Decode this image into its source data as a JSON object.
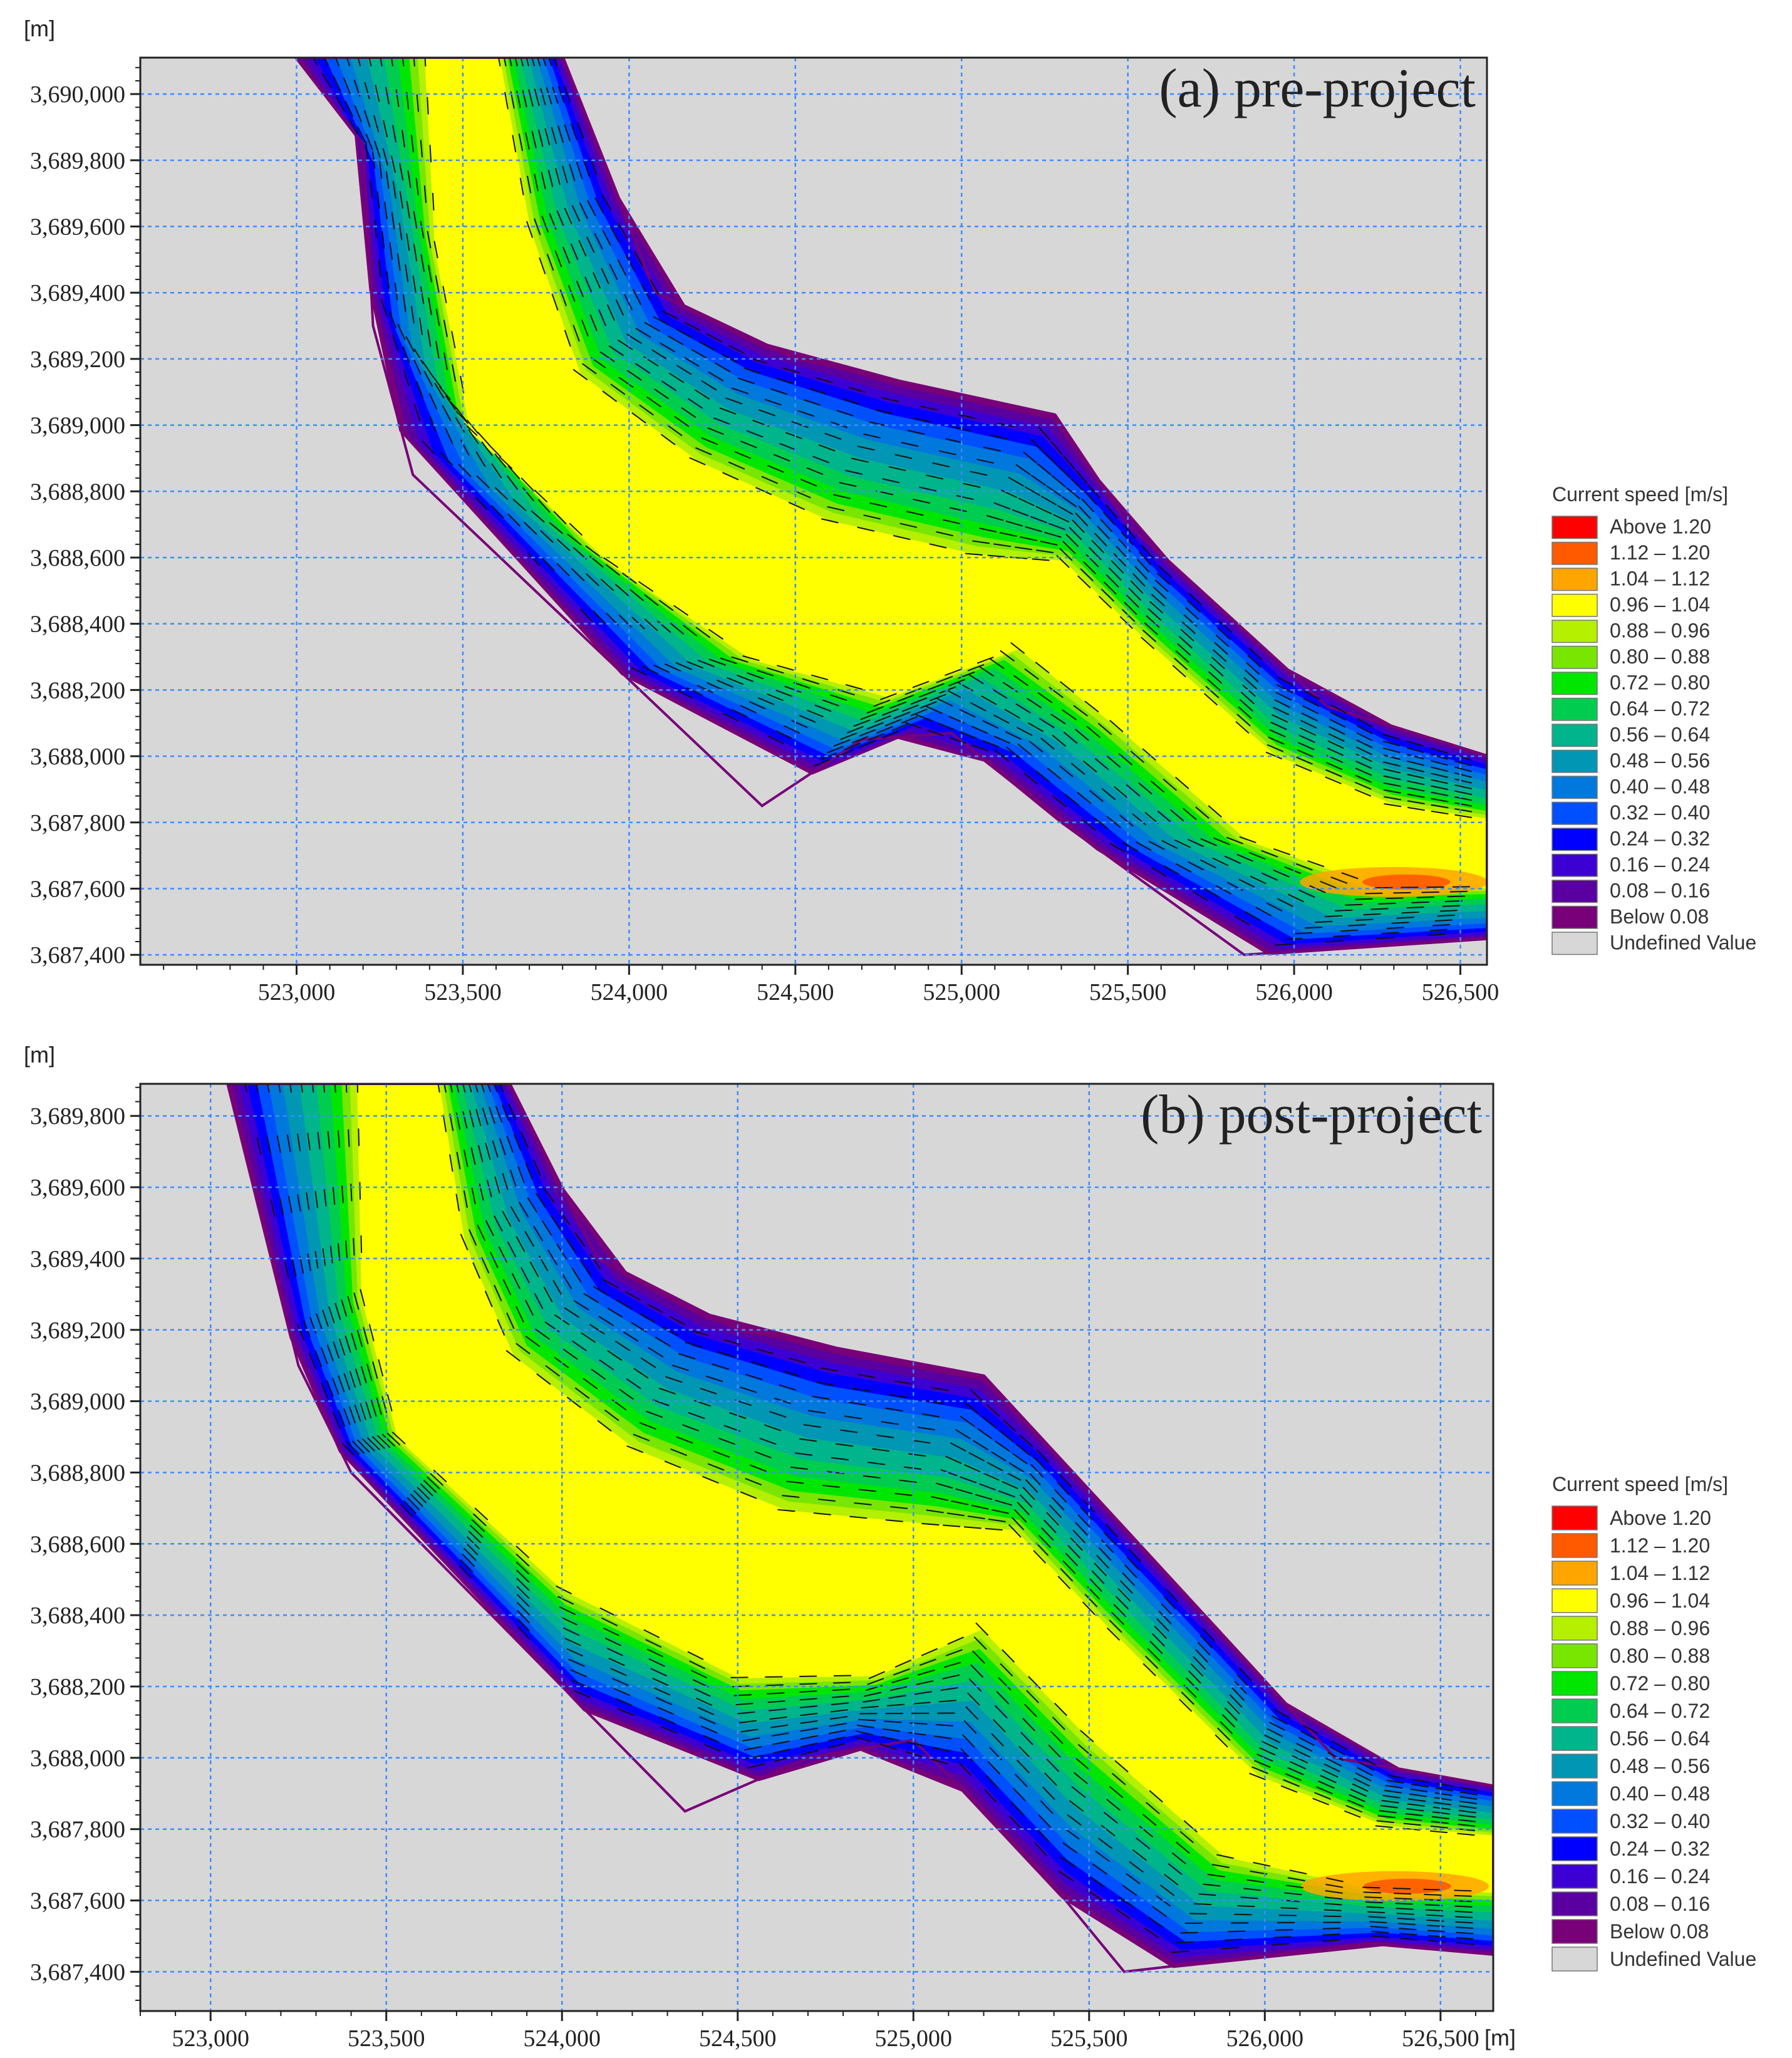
{
  "chart_data": [
    {
      "type": "heatmap",
      "title": "(a) pre-project",
      "y_unit_label": "[m]",
      "x_unit_label": "",
      "x_ticks": [
        523000,
        523500,
        524000,
        524500,
        525000,
        525500,
        526000,
        526500
      ],
      "x_tick_labels": [
        "523,000",
        "523,500",
        "524,000",
        "524,500",
        "525,000",
        "525,500",
        "526,000",
        "526,500"
      ],
      "y_ticks": [
        3690000,
        3689800,
        3689600,
        3689400,
        3689200,
        3689000,
        3688800,
        3688600,
        3688400,
        3688200,
        3688000,
        3687800,
        3687600,
        3687400
      ],
      "y_tick_labels": [
        "3,690,000",
        "3,689,800",
        "3,689,600",
        "3,689,400",
        "3,689,200",
        "3,689,000",
        "3,688,800",
        "3,688,600",
        "3,688,400",
        "3,688,200",
        "3,688,000",
        "3,687,800",
        "3,687,600",
        "3,687,400"
      ],
      "xlim": [
        522530,
        526580
      ],
      "ylim": [
        3687370,
        3690110
      ],
      "grid": true,
      "legend_position": "right",
      "channel_left_bank": [
        [
          523000,
          3690110
        ],
        [
          523200,
          3689850
        ],
        [
          523230,
          3689300
        ],
        [
          523350,
          3688850
        ],
        [
          524400,
          3687850
        ],
        [
          524700,
          3688050
        ],
        [
          524970,
          3688070
        ],
        [
          525300,
          3687800
        ],
        [
          525850,
          3687400
        ],
        [
          526580,
          3687450
        ]
      ],
      "channel_right_bank": [
        [
          523800,
          3690110
        ],
        [
          524080,
          3689400
        ],
        [
          524500,
          3689200
        ],
        [
          525280,
          3689030
        ],
        [
          525500,
          3688700
        ],
        [
          526100,
          3688150
        ],
        [
          526580,
          3688000
        ]
      ],
      "thalweg": [
        [
          523420,
          3690110
        ],
        [
          523440,
          3689500
        ],
        [
          523550,
          3688950
        ],
        [
          524000,
          3688550
        ],
        [
          524400,
          3688300
        ],
        [
          524800,
          3688200
        ],
        [
          525200,
          3688350
        ],
        [
          525500,
          3688100
        ],
        [
          525900,
          3687750
        ],
        [
          526300,
          3687620
        ],
        [
          526580,
          3687620
        ]
      ]
    },
    {
      "type": "heatmap",
      "title": "(b) post-project",
      "y_unit_label": "[m]",
      "x_unit_label": "[m]",
      "x_ticks": [
        523000,
        523500,
        524000,
        524500,
        525000,
        525500,
        526000,
        526500
      ],
      "x_tick_labels": [
        "523,000",
        "523,500",
        "524,000",
        "524,500",
        "525,000",
        "525,500",
        "526,000",
        "526,500"
      ],
      "y_ticks": [
        3689800,
        3689600,
        3689400,
        3689200,
        3689000,
        3688800,
        3688600,
        3688400,
        3688200,
        3688000,
        3687800,
        3687600,
        3687400
      ],
      "y_tick_labels": [
        "3,689,800",
        "3,689,600",
        "3,689,400",
        "3,689,200",
        "3,689,000",
        "3,688,800",
        "3,688,600",
        "3,688,400",
        "3,688,200",
        "3,688,000",
        "3,687,800",
        "3,687,600",
        "3,687,400"
      ],
      "xlim": [
        522800,
        526650
      ],
      "ylim": [
        3687290,
        3689890
      ],
      "grid": true,
      "legend_position": "right",
      "channel_left_bank": [
        [
          523050,
          3689890
        ],
        [
          523250,
          3689100
        ],
        [
          523400,
          3688800
        ],
        [
          524350,
          3687850
        ],
        [
          524700,
          3688000
        ],
        [
          525000,
          3688050
        ],
        [
          525350,
          3687700
        ],
        [
          525600,
          3687400
        ],
        [
          526300,
          3687480
        ],
        [
          526650,
          3687450
        ]
      ],
      "channel_right_bank": [
        [
          523850,
          3689890
        ],
        [
          524100,
          3689400
        ],
        [
          524500,
          3689200
        ],
        [
          525200,
          3689070
        ],
        [
          525500,
          3688750
        ],
        [
          526200,
          3688000
        ],
        [
          526650,
          3687920
        ]
      ],
      "thalweg": [
        [
          523450,
          3689890
        ],
        [
          523450,
          3689300
        ],
        [
          523550,
          3688900
        ],
        [
          524000,
          3688500
        ],
        [
          524500,
          3688250
        ],
        [
          524900,
          3688250
        ],
        [
          525200,
          3688400
        ],
        [
          525500,
          3688100
        ],
        [
          525900,
          3687750
        ],
        [
          526300,
          3687650
        ],
        [
          526650,
          3687640
        ]
      ]
    }
  ],
  "legend": {
    "title": "Current speed [m/s]",
    "items": [
      {
        "label": "Above 1.20",
        "color": "#ff0000"
      },
      {
        "label": "1.12 – 1.20",
        "color": "#ff5a00"
      },
      {
        "label": "1.04 – 1.12",
        "color": "#ffa500"
      },
      {
        "label": "0.96 – 1.04",
        "color": "#ffff00"
      },
      {
        "label": "0.88 – 0.96",
        "color": "#b4f000"
      },
      {
        "label": "0.80 – 0.88",
        "color": "#78e600"
      },
      {
        "label": "0.72 – 0.80",
        "color": "#00e600"
      },
      {
        "label": "0.64 – 0.72",
        "color": "#00cd50"
      },
      {
        "label": "0.56 – 0.64",
        "color": "#00b48c"
      },
      {
        "label": "0.48 – 0.56",
        "color": "#0096b4"
      },
      {
        "label": "0.40 – 0.48",
        "color": "#0078dc"
      },
      {
        "label": "0.32 – 0.40",
        "color": "#0050ff"
      },
      {
        "label": "0.24 – 0.32",
        "color": "#0000ff"
      },
      {
        "label": "0.16 – 0.24",
        "color": "#3c00d2"
      },
      {
        "label": "0.08 – 0.16",
        "color": "#5a00a0"
      },
      {
        "label": "Below 0.08",
        "color": "#780078"
      },
      {
        "label": "Undefined Value",
        "color": "#d7d7d7"
      }
    ]
  }
}
